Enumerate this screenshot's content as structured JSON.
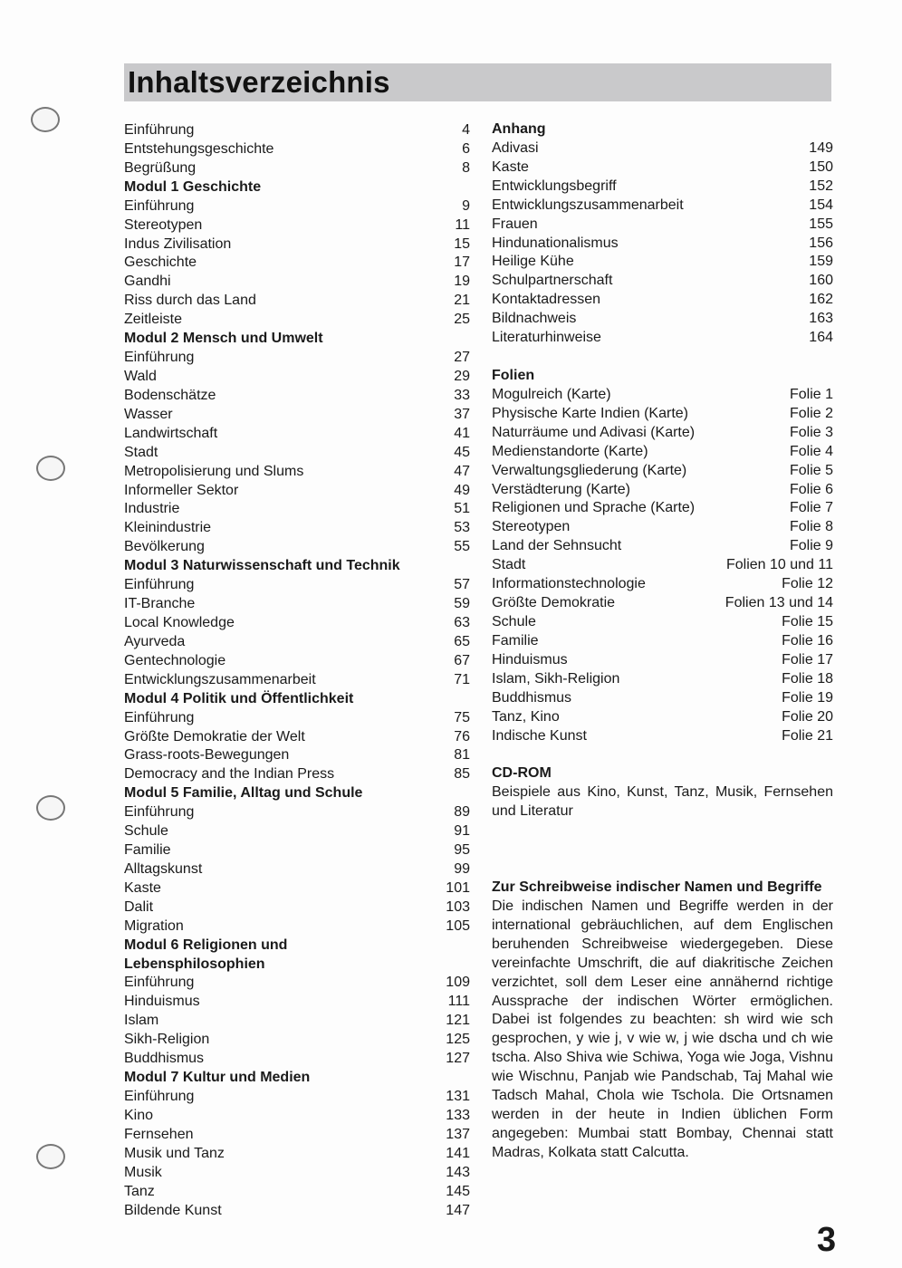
{
  "title": "Inhaltsverzeichnis",
  "page_number": "3",
  "left_column": [
    {
      "label": "Einführung",
      "page": "4"
    },
    {
      "label": "Entstehungsgeschichte",
      "page": "6"
    },
    {
      "label": "Begrüßung",
      "page": "8"
    },
    {
      "label": "Modul 1 Geschichte",
      "page": "",
      "heading": true
    },
    {
      "label": "Einführung",
      "page": "9"
    },
    {
      "label": "Stereotypen",
      "page": "11"
    },
    {
      "label": "Indus Zivilisation",
      "page": "15"
    },
    {
      "label": "Geschichte",
      "page": "17"
    },
    {
      "label": "Gandhi",
      "page": "19"
    },
    {
      "label": "Riss durch das Land",
      "page": "21"
    },
    {
      "label": "Zeitleiste",
      "page": "25"
    },
    {
      "label": "Modul 2 Mensch und Umwelt",
      "page": "",
      "heading": true
    },
    {
      "label": "Einführung",
      "page": "27"
    },
    {
      "label": "Wald",
      "page": "29"
    },
    {
      "label": "Bodenschätze",
      "page": "33"
    },
    {
      "label": "Wasser",
      "page": "37"
    },
    {
      "label": "Landwirtschaft",
      "page": "41"
    },
    {
      "label": "Stadt",
      "page": "45"
    },
    {
      "label": "Metropolisierung und Slums",
      "page": "47"
    },
    {
      "label": "Informeller Sektor",
      "page": "49"
    },
    {
      "label": "Industrie",
      "page": "51"
    },
    {
      "label": "Kleinindustrie",
      "page": "53"
    },
    {
      "label": "Bevölkerung",
      "page": "55"
    },
    {
      "label": "Modul 3 Naturwissenschaft und Technik",
      "page": "",
      "heading": true
    },
    {
      "label": "Einführung",
      "page": "57"
    },
    {
      "label": "IT-Branche",
      "page": "59"
    },
    {
      "label": "Local Knowledge",
      "page": "63"
    },
    {
      "label": "Ayurveda",
      "page": "65"
    },
    {
      "label": "Gentechnologie",
      "page": "67"
    },
    {
      "label": "Entwicklungszusammenarbeit",
      "page": "71"
    },
    {
      "label": "Modul 4 Politik und Öffentlichkeit",
      "page": "",
      "heading": true
    },
    {
      "label": "Einführung",
      "page": "75"
    },
    {
      "label": "Größte Demokratie der Welt",
      "page": "76"
    },
    {
      "label": "Grass-roots-Bewegungen",
      "page": "81"
    },
    {
      "label": "Democracy and the Indian Press",
      "page": "85"
    },
    {
      "label": "Modul 5 Familie, Alltag und Schule",
      "page": "",
      "heading": true
    },
    {
      "label": "Einführung",
      "page": "89"
    },
    {
      "label": "Schule",
      "page": "91"
    },
    {
      "label": "Familie",
      "page": "95"
    },
    {
      "label": "Alltagskunst",
      "page": "99"
    },
    {
      "label": "Kaste",
      "page": "101"
    },
    {
      "label": "Dalit",
      "page": "103"
    },
    {
      "label": "Migration",
      "page": "105"
    },
    {
      "label": "Modul 6 Religionen und",
      "page": "",
      "heading": true
    },
    {
      "label": "Lebensphilosophien",
      "page": "",
      "heading": true
    },
    {
      "label": "Einführung",
      "page": "109"
    },
    {
      "label": "Hinduismus",
      "page": "111"
    },
    {
      "label": "Islam",
      "page": "121"
    },
    {
      "label": "Sikh-Religion",
      "page": "125"
    },
    {
      "label": "Buddhismus",
      "page": "127"
    },
    {
      "label": "Modul 7 Kultur und Medien",
      "page": "",
      "heading": true
    },
    {
      "label": "Einführung",
      "page": "131"
    },
    {
      "label": "Kino",
      "page": "133"
    },
    {
      "label": "Fernsehen",
      "page": "137"
    },
    {
      "label": "Musik und Tanz",
      "page": "141"
    },
    {
      "label": "Musik",
      "page": "143"
    },
    {
      "label": "Tanz",
      "page": "145"
    },
    {
      "label": "Bildende Kunst",
      "page": "147"
    }
  ],
  "right_column": [
    {
      "label": "Anhang",
      "page": "",
      "heading": true
    },
    {
      "label": "Adivasi",
      "page": "149"
    },
    {
      "label": "Kaste",
      "page": "150"
    },
    {
      "label": "Entwicklungsbegriff",
      "page": "152"
    },
    {
      "label": "Entwicklungszusammenarbeit",
      "page": "154"
    },
    {
      "label": "Frauen",
      "page": "155"
    },
    {
      "label": "Hindunationalismus",
      "page": "156"
    },
    {
      "label": "Heilige Kühe",
      "page": "159"
    },
    {
      "label": "Schulpartnerschaft",
      "page": "160"
    },
    {
      "label": "Kontaktadressen",
      "page": "162"
    },
    {
      "label": "Bildnachweis",
      "page": "163"
    },
    {
      "label": "Literaturhinweise",
      "page": "164"
    },
    {
      "label": "",
      "page": ""
    },
    {
      "label": "Folien",
      "page": "",
      "heading": true
    },
    {
      "label": "Mogulreich (Karte)",
      "page": "Folie 1"
    },
    {
      "label": "Physische Karte Indien (Karte)",
      "page": "Folie 2"
    },
    {
      "label": "Naturräume und Adivasi (Karte)",
      "page": "Folie 3"
    },
    {
      "label": "Medienstandorte (Karte)",
      "page": "Folie 4"
    },
    {
      "label": "Verwaltungsgliederung (Karte)",
      "page": "Folie 5"
    },
    {
      "label": "Verstädterung (Karte)",
      "page": "Folie 6"
    },
    {
      "label": "Religionen und Sprache (Karte)",
      "page": "Folie 7"
    },
    {
      "label": "Stereotypen",
      "page": "Folie 8"
    },
    {
      "label": "Land der Sehnsucht",
      "page": "Folie 9"
    },
    {
      "label": "Stadt",
      "page": "Folien 10 und 11"
    },
    {
      "label": "Informationstechnologie",
      "page": "Folie 12"
    },
    {
      "label": "Größte Demokratie",
      "page": "Folien 13 und 14"
    },
    {
      "label": "Schule",
      "page": "Folie 15"
    },
    {
      "label": "Familie",
      "page": "Folie 16"
    },
    {
      "label": "Hinduismus",
      "page": "Folie 17"
    },
    {
      "label": "Islam, Sikh-Religion",
      "page": "Folie 18"
    },
    {
      "label": "Buddhismus",
      "page": "Folie 19"
    },
    {
      "label": "Tanz, Kino",
      "page": "Folie 20"
    },
    {
      "label": "Indische Kunst",
      "page": "Folie 21"
    },
    {
      "label": "",
      "page": ""
    },
    {
      "label": "CD-ROM",
      "page": "",
      "heading": true
    }
  ],
  "cdrom_text": "Beispiele aus Kino, Kunst, Tanz, Musik, Fernsehen und Literatur",
  "note": {
    "heading": "Zur Schreibweise indischer Namen und Begriffe",
    "text": "Die indischen Namen und Begriffe werden in der international gebräuchlichen, auf dem Englischen beruhenden Schreibweise wiedergegeben. Diese vereinfachte Umschrift, die auf diakritische Zeichen verzichtet, soll dem Leser eine annähernd richtige Aussprache der indischen Wörter ermöglichen. Dabei ist folgendes zu beachten: sh wird wie sch gesprochen, y wie j, v wie w, j wie dscha und ch wie tscha. Also Shiva wie Schiwa, Yoga wie Joga, Vishnu wie Wischnu, Panjab wie Pandschab, Taj Mahal wie Tadsch Mahal, Chola wie Tschola. Die Ortsnamen werden in der heute in Indien üblichen Form angegeben: Mumbai statt Bombay, Chennai statt Madras, Kolkata statt Calcutta."
  }
}
